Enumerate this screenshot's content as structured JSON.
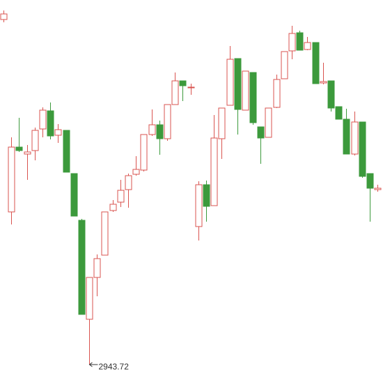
{
  "chart_data": {
    "type": "candlestick",
    "up_color": "#d9534f",
    "down_color": "#3c9a3c",
    "ylim": [
      2931.22,
      3205.22
    ],
    "open": [
      3191.22,
      3053.22,
      3099.72,
      3094.72,
      3097.22,
      3112.72,
      3125.72,
      3108.22,
      3111.72,
      3080.72,
      3047.22,
      2976.22,
      3006.22,
      3022.22,
      3054.22,
      3060.22,
      3069.22,
      3080.22,
      3083.22,
      3108.72,
      3115.72,
      3105.72,
      3130.22,
      3147.22,
      3142.72,
      3042.72,
      3072.72,
      3057.72,
      3105.72,
      3129.72,
      3163.22,
      3126.22,
      3153.22,
      3114.22,
      3106.72,
      3128.22,
      3148.72,
      3168.72,
      3181.72,
      3169.72,
      3174.72,
      3145.72,
      3147.22,
      3128.72,
      3119.72,
      3094.72,
      3117.72,
      3080.72,
      3069.22
    ],
    "high": [
      3197.72,
      3106.72,
      3120.72,
      3101.22,
      3113.72,
      3128.22,
      3131.72,
      3116.22,
      3111.72,
      3080.72,
      3048.22,
      3006.22,
      3022.72,
      3053.22,
      3061.72,
      3076.22,
      3080.72,
      3093.22,
      3108.72,
      3126.72,
      3118.72,
      3130.22,
      3153.22,
      3147.22,
      3145.22,
      3075.22,
      3075.72,
      3122.72,
      3127.72,
      3172.22,
      3163.22,
      3154.22,
      3153.22,
      3114.22,
      3127.72,
      3151.72,
      3168.22,
      3186.72,
      3183.22,
      3178.72,
      3174.72,
      3160.22,
      3147.22,
      3128.72,
      3127.22,
      3125.22,
      3117.72,
      3080.72,
      3072.72
    ],
    "low": [
      3189.22,
      3044.22,
      3096.22,
      3076.22,
      3090.22,
      3106.72,
      3105.22,
      3102.72,
      3081.72,
      3050.22,
      2979.72,
      2943.72,
      2992.72,
      3022.22,
      3053.22,
      3056.72,
      3056.22,
      3079.22,
      3082.22,
      3107.72,
      3094.22,
      3104.22,
      3130.22,
      3132.72,
      3137.22,
      3032.72,
      3046.22,
      3057.72,
      3091.22,
      3129.72,
      3108.72,
      3126.22,
      3115.72,
      3087.72,
      3106.72,
      3127.72,
      3148.72,
      3162.72,
      3169.22,
      3169.22,
      3145.22,
      3144.72,
      3125.22,
      3119.72,
      3094.72,
      3093.72,
      3077.72,
      3046.22,
      3067.72
    ],
    "close": [
      3195.22,
      3099.72,
      3097.22,
      3096.22,
      3111.72,
      3126.22,
      3107.72,
      3112.22,
      3081.72,
      3050.22,
      2979.72,
      3006.22,
      3019.72,
      3053.22,
      3058.72,
      3068.72,
      3079.22,
      3083.72,
      3108.72,
      3115.72,
      3105.72,
      3130.22,
      3147.22,
      3143.72,
      3142.72,
      3072.72,
      3057.22,
      3106.22,
      3127.72,
      3162.72,
      3126.72,
      3154.22,
      3117.22,
      3106.22,
      3127.72,
      3148.22,
      3168.22,
      3181.22,
      3169.22,
      3174.72,
      3145.22,
      3146.72,
      3127.72,
      3119.72,
      3094.72,
      3117.72,
      3078.72,
      3070.22,
      3070.22
    ]
  }
}
